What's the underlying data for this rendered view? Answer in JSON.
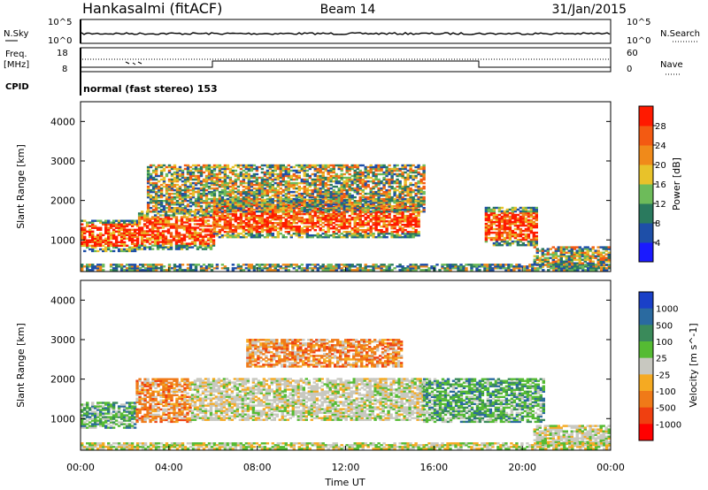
{
  "header": {
    "station": "Hankasalmi (fitACF)",
    "beam": "Beam 14",
    "date": "31/Jan/2015"
  },
  "noise_panel": {
    "left_label": "N.Sky",
    "right_label": "N.Search",
    "left_ticks": [
      "10^5",
      "10^0"
    ],
    "right_ticks": [
      "10^5",
      "10^0"
    ]
  },
  "freq_panel": {
    "left_label_1": "Freq.",
    "left_label_2": "[MHz]",
    "left_ticks": [
      "18",
      "8"
    ],
    "right_label": "Nave",
    "right_ticks": [
      "60",
      "0"
    ],
    "cpid_label": "CPID",
    "mode_text": "normal (fast stereo) 153"
  },
  "chart_data": [
    {
      "type": "heatmap",
      "title": "Power",
      "ylabel": "Slant Range [km]",
      "ylim": [
        200,
        4500
      ],
      "yticks": [
        "1000",
        "2000",
        "3000",
        "4000"
      ],
      "colorbar": {
        "label": "Power [dB]",
        "ticks": [
          "4",
          "8",
          "12",
          "16",
          "20",
          "24",
          "28"
        ],
        "range": [
          0,
          32
        ],
        "colors": [
          "#1a1aff",
          "#1e4fa8",
          "#2a7a5e",
          "#6dbb5a",
          "#e8c22a",
          "#f08a1a",
          "#f35a12",
          "#ff1a00"
        ]
      },
      "echo_regions": [
        {
          "t_start": 0.0,
          "t_end": 2.6,
          "r_start": 700,
          "r_end": 1500,
          "level": "high"
        },
        {
          "t_start": 2.6,
          "t_end": 6.0,
          "r_start": 750,
          "r_end": 1700,
          "level": "high"
        },
        {
          "t_start": 6.0,
          "t_end": 15.3,
          "r_start": 1050,
          "r_end": 2000,
          "level": "high"
        },
        {
          "t_start": 3.0,
          "t_end": 15.5,
          "r_start": 1700,
          "r_end": 2900,
          "level": "medium"
        },
        {
          "t_start": 18.3,
          "t_end": 20.7,
          "r_start": 850,
          "r_end": 1800,
          "level": "high"
        },
        {
          "t_start": 20.5,
          "t_end": 24.0,
          "r_start": 300,
          "r_end": 800,
          "level": "medium"
        }
      ]
    },
    {
      "type": "heatmap",
      "title": "Velocity",
      "xlabel": "Time UT",
      "xticks": [
        "00:00",
        "04:00",
        "08:00",
        "12:00",
        "16:00",
        "20:00",
        "00:00"
      ],
      "xlim": [
        0,
        24
      ],
      "ylabel": "Slant Range [km]",
      "ylim": [
        200,
        4500
      ],
      "yticks": [
        "1000",
        "2000",
        "3000",
        "4000"
      ],
      "colorbar": {
        "label": "Velocity [m s^-1]",
        "ticks": [
          "1000",
          "500",
          "100",
          "25",
          "-25",
          "-100",
          "-500",
          "-1000"
        ],
        "colors": [
          "#1a40c8",
          "#2a6aa0",
          "#3a8a5a",
          "#55bb33",
          "#c8c8c0",
          "#f5aa22",
          "#f07a18",
          "#f04010",
          "#ff0000"
        ]
      },
      "echo_regions": [
        {
          "t_start": 0.0,
          "t_end": 2.5,
          "r_start": 750,
          "r_end": 1400,
          "class": "positive"
        },
        {
          "t_start": 2.5,
          "t_end": 5.0,
          "r_start": 900,
          "r_end": 2000,
          "class": "negative"
        },
        {
          "t_start": 5.0,
          "t_end": 15.5,
          "r_start": 950,
          "r_end": 2000,
          "class": "low"
        },
        {
          "t_start": 7.5,
          "t_end": 14.5,
          "r_start": 2300,
          "r_end": 3000,
          "class": "negative"
        },
        {
          "t_start": 15.5,
          "t_end": 21.0,
          "r_start": 900,
          "r_end": 2000,
          "class": "positive"
        },
        {
          "t_start": 20.5,
          "t_end": 24.0,
          "r_start": 300,
          "r_end": 800,
          "class": "low"
        }
      ]
    }
  ]
}
